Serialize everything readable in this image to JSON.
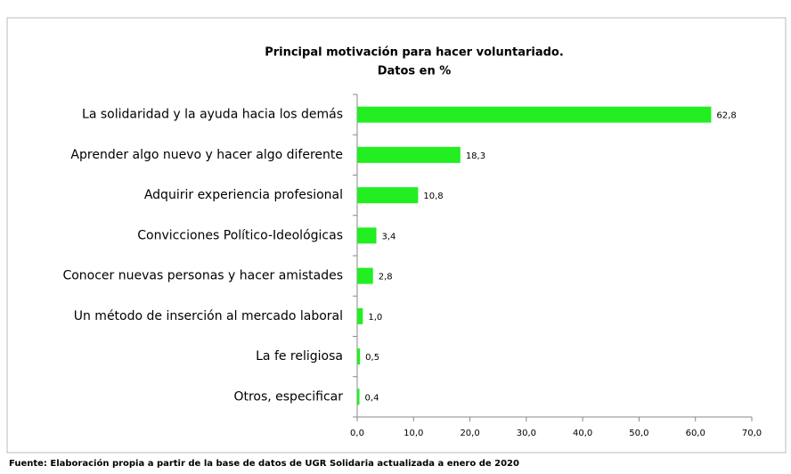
{
  "chart_data": {
    "type": "bar",
    "orientation": "horizontal",
    "title": "Principal motivación para hacer voluntariado.",
    "subtitle": "Datos en %",
    "categories": [
      "La solidaridad y la ayuda hacia los demás",
      "Aprender algo nuevo y hacer algo diferente",
      "Adquirir experiencia profesional",
      "Convicciones Político-Ideológicas",
      "Conocer nuevas personas y hacer amistades",
      "Un método de inserción al mercado laboral",
      "La fe religiosa",
      "Otros, especificar"
    ],
    "values": [
      62.8,
      18.3,
      10.8,
      3.4,
      2.8,
      1.0,
      0.5,
      0.4
    ],
    "value_labels": [
      "62,8",
      "18,3",
      "10,8",
      "3,4",
      "2,8",
      "1,0",
      "0,5",
      "0,4"
    ],
    "color": "#22ee22",
    "xlim": [
      0,
      70
    ],
    "xticks": [
      {
        "value": 0,
        "label": "0,0"
      },
      {
        "value": 10,
        "label": "10,0"
      },
      {
        "value": 20,
        "label": "20,0"
      },
      {
        "value": 30,
        "label": "30,0"
      },
      {
        "value": 40,
        "label": "40,0"
      },
      {
        "value": 50,
        "label": "50,0"
      },
      {
        "value": 60,
        "label": "60,0"
      },
      {
        "value": 70,
        "label": "70,0"
      }
    ],
    "grid": false,
    "source": "Fuente: Elaboración  propia a partir de la base de datos de UGR Solidaria  actualizada a enero de 2020"
  }
}
